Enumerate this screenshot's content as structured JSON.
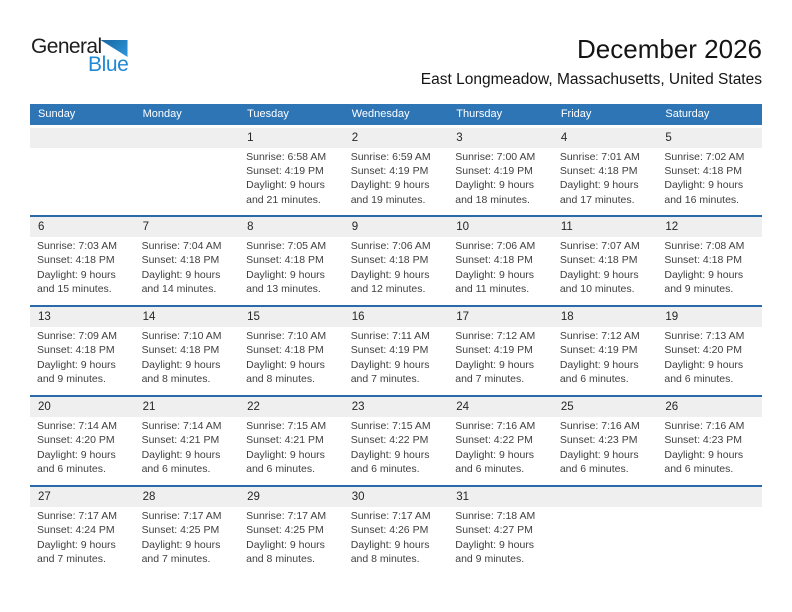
{
  "logo": {
    "general": "General",
    "blue": "Blue"
  },
  "header": {
    "title": "December 2026",
    "location": "East Longmeadow, Massachusetts, United States"
  },
  "colors": {
    "header_bg": "#2e75b6",
    "row_separator": "#2a6aa9",
    "date_band_bg": "#efefef",
    "logo_blue": "#2089d5",
    "logo_triangle_dark": "#15659e",
    "logo_triangle_light": "#2f97dd"
  },
  "day_headers": [
    "Sunday",
    "Monday",
    "Tuesday",
    "Wednesday",
    "Thursday",
    "Friday",
    "Saturday"
  ],
  "weeks": [
    [
      null,
      null,
      {
        "day": "1",
        "sunrise": "Sunrise: 6:58 AM",
        "sunset": "Sunset: 4:19 PM",
        "daylight_line1": "Daylight: 9 hours",
        "daylight_line2": "and 21 minutes."
      },
      {
        "day": "2",
        "sunrise": "Sunrise: 6:59 AM",
        "sunset": "Sunset: 4:19 PM",
        "daylight_line1": "Daylight: 9 hours",
        "daylight_line2": "and 19 minutes."
      },
      {
        "day": "3",
        "sunrise": "Sunrise: 7:00 AM",
        "sunset": "Sunset: 4:19 PM",
        "daylight_line1": "Daylight: 9 hours",
        "daylight_line2": "and 18 minutes."
      },
      {
        "day": "4",
        "sunrise": "Sunrise: 7:01 AM",
        "sunset": "Sunset: 4:18 PM",
        "daylight_line1": "Daylight: 9 hours",
        "daylight_line2": "and 17 minutes."
      },
      {
        "day": "5",
        "sunrise": "Sunrise: 7:02 AM",
        "sunset": "Sunset: 4:18 PM",
        "daylight_line1": "Daylight: 9 hours",
        "daylight_line2": "and 16 minutes."
      }
    ],
    [
      {
        "day": "6",
        "sunrise": "Sunrise: 7:03 AM",
        "sunset": "Sunset: 4:18 PM",
        "daylight_line1": "Daylight: 9 hours",
        "daylight_line2": "and 15 minutes."
      },
      {
        "day": "7",
        "sunrise": "Sunrise: 7:04 AM",
        "sunset": "Sunset: 4:18 PM",
        "daylight_line1": "Daylight: 9 hours",
        "daylight_line2": "and 14 minutes."
      },
      {
        "day": "8",
        "sunrise": "Sunrise: 7:05 AM",
        "sunset": "Sunset: 4:18 PM",
        "daylight_line1": "Daylight: 9 hours",
        "daylight_line2": "and 13 minutes."
      },
      {
        "day": "9",
        "sunrise": "Sunrise: 7:06 AM",
        "sunset": "Sunset: 4:18 PM",
        "daylight_line1": "Daylight: 9 hours",
        "daylight_line2": "and 12 minutes."
      },
      {
        "day": "10",
        "sunrise": "Sunrise: 7:06 AM",
        "sunset": "Sunset: 4:18 PM",
        "daylight_line1": "Daylight: 9 hours",
        "daylight_line2": "and 11 minutes."
      },
      {
        "day": "11",
        "sunrise": "Sunrise: 7:07 AM",
        "sunset": "Sunset: 4:18 PM",
        "daylight_line1": "Daylight: 9 hours",
        "daylight_line2": "and 10 minutes."
      },
      {
        "day": "12",
        "sunrise": "Sunrise: 7:08 AM",
        "sunset": "Sunset: 4:18 PM",
        "daylight_line1": "Daylight: 9 hours",
        "daylight_line2": "and 9 minutes."
      }
    ],
    [
      {
        "day": "13",
        "sunrise": "Sunrise: 7:09 AM",
        "sunset": "Sunset: 4:18 PM",
        "daylight_line1": "Daylight: 9 hours",
        "daylight_line2": "and 9 minutes."
      },
      {
        "day": "14",
        "sunrise": "Sunrise: 7:10 AM",
        "sunset": "Sunset: 4:18 PM",
        "daylight_line1": "Daylight: 9 hours",
        "daylight_line2": "and 8 minutes."
      },
      {
        "day": "15",
        "sunrise": "Sunrise: 7:10 AM",
        "sunset": "Sunset: 4:18 PM",
        "daylight_line1": "Daylight: 9 hours",
        "daylight_line2": "and 8 minutes."
      },
      {
        "day": "16",
        "sunrise": "Sunrise: 7:11 AM",
        "sunset": "Sunset: 4:19 PM",
        "daylight_line1": "Daylight: 9 hours",
        "daylight_line2": "and 7 minutes."
      },
      {
        "day": "17",
        "sunrise": "Sunrise: 7:12 AM",
        "sunset": "Sunset: 4:19 PM",
        "daylight_line1": "Daylight: 9 hours",
        "daylight_line2": "and 7 minutes."
      },
      {
        "day": "18",
        "sunrise": "Sunrise: 7:12 AM",
        "sunset": "Sunset: 4:19 PM",
        "daylight_line1": "Daylight: 9 hours",
        "daylight_line2": "and 6 minutes."
      },
      {
        "day": "19",
        "sunrise": "Sunrise: 7:13 AM",
        "sunset": "Sunset: 4:20 PM",
        "daylight_line1": "Daylight: 9 hours",
        "daylight_line2": "and 6 minutes."
      }
    ],
    [
      {
        "day": "20",
        "sunrise": "Sunrise: 7:14 AM",
        "sunset": "Sunset: 4:20 PM",
        "daylight_line1": "Daylight: 9 hours",
        "daylight_line2": "and 6 minutes."
      },
      {
        "day": "21",
        "sunrise": "Sunrise: 7:14 AM",
        "sunset": "Sunset: 4:21 PM",
        "daylight_line1": "Daylight: 9 hours",
        "daylight_line2": "and 6 minutes."
      },
      {
        "day": "22",
        "sunrise": "Sunrise: 7:15 AM",
        "sunset": "Sunset: 4:21 PM",
        "daylight_line1": "Daylight: 9 hours",
        "daylight_line2": "and 6 minutes."
      },
      {
        "day": "23",
        "sunrise": "Sunrise: 7:15 AM",
        "sunset": "Sunset: 4:22 PM",
        "daylight_line1": "Daylight: 9 hours",
        "daylight_line2": "and 6 minutes."
      },
      {
        "day": "24",
        "sunrise": "Sunrise: 7:16 AM",
        "sunset": "Sunset: 4:22 PM",
        "daylight_line1": "Daylight: 9 hours",
        "daylight_line2": "and 6 minutes."
      },
      {
        "day": "25",
        "sunrise": "Sunrise: 7:16 AM",
        "sunset": "Sunset: 4:23 PM",
        "daylight_line1": "Daylight: 9 hours",
        "daylight_line2": "and 6 minutes."
      },
      {
        "day": "26",
        "sunrise": "Sunrise: 7:16 AM",
        "sunset": "Sunset: 4:23 PM",
        "daylight_line1": "Daylight: 9 hours",
        "daylight_line2": "and 6 minutes."
      }
    ],
    [
      {
        "day": "27",
        "sunrise": "Sunrise: 7:17 AM",
        "sunset": "Sunset: 4:24 PM",
        "daylight_line1": "Daylight: 9 hours",
        "daylight_line2": "and 7 minutes."
      },
      {
        "day": "28",
        "sunrise": "Sunrise: 7:17 AM",
        "sunset": "Sunset: 4:25 PM",
        "daylight_line1": "Daylight: 9 hours",
        "daylight_line2": "and 7 minutes."
      },
      {
        "day": "29",
        "sunrise": "Sunrise: 7:17 AM",
        "sunset": "Sunset: 4:25 PM",
        "daylight_line1": "Daylight: 9 hours",
        "daylight_line2": "and 8 minutes."
      },
      {
        "day": "30",
        "sunrise": "Sunrise: 7:17 AM",
        "sunset": "Sunset: 4:26 PM",
        "daylight_line1": "Daylight: 9 hours",
        "daylight_line2": "and 8 minutes."
      },
      {
        "day": "31",
        "sunrise": "Sunrise: 7:18 AM",
        "sunset": "Sunset: 4:27 PM",
        "daylight_line1": "Daylight: 9 hours",
        "daylight_line2": "and 9 minutes."
      },
      null,
      null
    ]
  ]
}
